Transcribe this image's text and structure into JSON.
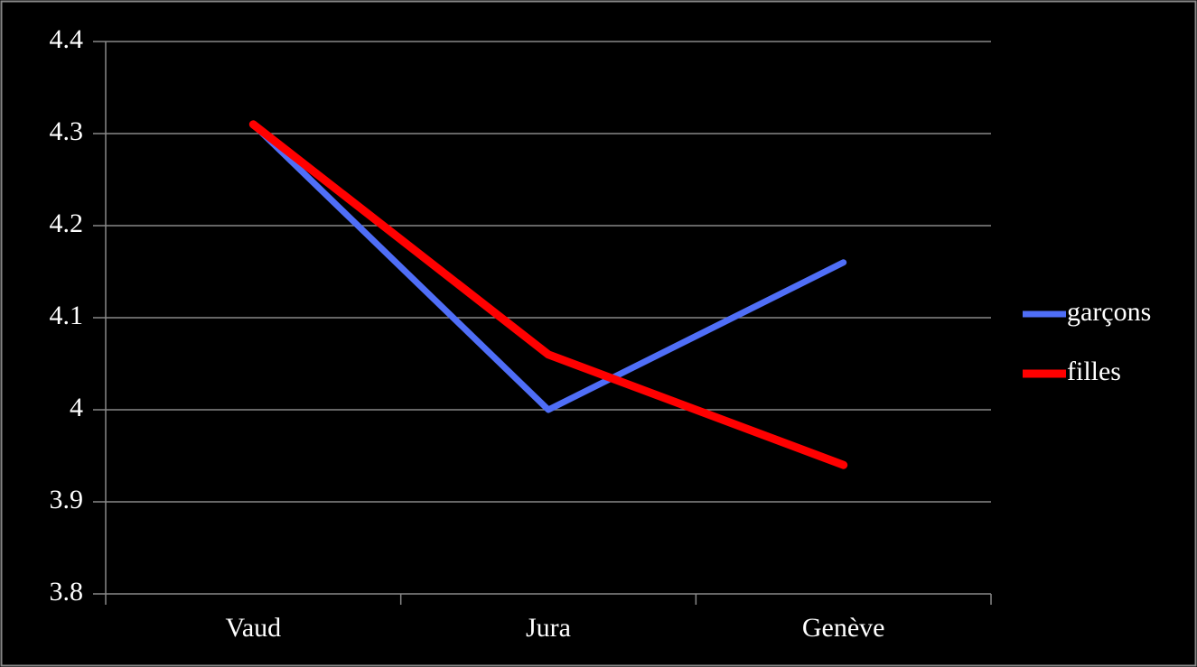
{
  "chart_data": {
    "type": "line",
    "categories": [
      "Vaud",
      "Jura",
      "Genève"
    ],
    "series": [
      {
        "name": "garçons",
        "color": "#4f6ef7",
        "values": [
          4.31,
          4.0,
          4.16
        ]
      },
      {
        "name": "filles",
        "color": "#ff0000",
        "values": [
          4.31,
          4.06,
          3.94
        ]
      }
    ],
    "ylim": [
      3.8,
      4.4
    ],
    "yticks": [
      3.8,
      3.9,
      4,
      4.1,
      4.2,
      4.3,
      4.4
    ],
    "grid": true,
    "legend": "right"
  }
}
